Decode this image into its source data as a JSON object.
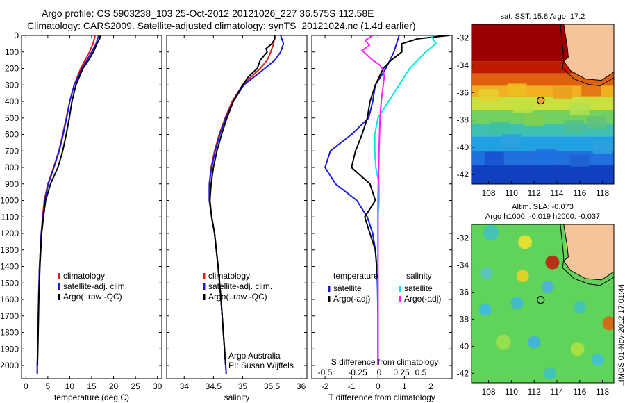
{
  "header": {
    "line1": "Argo profile: CS 5903238_103 25-Oct-2012 20121026_227 36.575S 112.58E",
    "line2": "Climatology: CARS2009. Satellite-adjusted climatology: synTS_20121024.nc (1.4d earlier)"
  },
  "colors": {
    "climatology": "#e01b1b",
    "satellite": "#1a1ae0",
    "argo": "#000000",
    "satellite_salinity": "#00e5ee",
    "argo_salinity": "#ff1dff",
    "land": "#f6c49a"
  },
  "chart_data": [
    {
      "type": "line",
      "panel": "temperature",
      "xlabel": "temperature (deg C)",
      "ylabel": "",
      "xlim": [
        -1,
        31
      ],
      "ylim": [
        2080,
        0
      ],
      "x_ticks": [
        0,
        5,
        10,
        15,
        20,
        25,
        30
      ],
      "y_ticks": [
        0,
        100,
        200,
        300,
        400,
        500,
        600,
        700,
        800,
        900,
        1000,
        1100,
        1200,
        1300,
        1400,
        1500,
        1600,
        1700,
        1800,
        1900,
        2000
      ],
      "legend": [
        "climatology",
        "satellite-adj. clim.",
        "Argo(..raw -QC)"
      ],
      "legend_position": "lower-center",
      "series": [
        {
          "name": "climatology",
          "color": "#e01b1b",
          "depth": [
            0,
            50,
            100,
            200,
            300,
            400,
            500,
            600,
            700,
            800,
            900,
            1000,
            1100,
            1200,
            1400,
            1600,
            1800,
            2000,
            2050
          ],
          "values": [
            15.8,
            15.3,
            14.5,
            12.5,
            11.0,
            10.0,
            9.2,
            8.4,
            7.5,
            6.3,
            5.0,
            4.2,
            3.8,
            3.5,
            3.1,
            2.9,
            2.75,
            2.6,
            2.6
          ]
        },
        {
          "name": "satellite-adj. clim.",
          "color": "#1a1ae0",
          "depth": [
            0,
            50,
            100,
            200,
            300,
            400,
            500,
            600,
            700,
            800,
            900,
            1000,
            1100,
            1200,
            1400,
            1600,
            1800,
            2000,
            2050
          ],
          "values": [
            16.6,
            16.0,
            15.0,
            12.8,
            11.0,
            10.0,
            9.3,
            8.5,
            7.6,
            6.4,
            5.1,
            4.3,
            3.9,
            3.5,
            3.1,
            2.9,
            2.75,
            2.6,
            2.6
          ]
        },
        {
          "name": "Argo(..raw -QC)",
          "color": "#000000",
          "depth": [
            0,
            20,
            50,
            100,
            150,
            200,
            300,
            400,
            500,
            600,
            700,
            800,
            900,
            1000,
            1100,
            1200,
            1400,
            1600,
            1800,
            2000
          ],
          "values": [
            17.0,
            16.8,
            16.2,
            15.4,
            14.3,
            13.0,
            11.4,
            10.5,
            9.9,
            9.2,
            8.4,
            7.3,
            5.6,
            4.5,
            4.0,
            3.6,
            3.2,
            2.95,
            2.8,
            2.65
          ]
        }
      ]
    },
    {
      "type": "line",
      "panel": "salinity",
      "xlabel": "salinity",
      "ylabel": "",
      "xlim": [
        33.7,
        36.1
      ],
      "ylim": [
        2080,
        0
      ],
      "x_ticks": [
        34,
        34.5,
        35,
        35.5,
        36
      ],
      "legend": [
        "climatology",
        "satellite-adj. clim.",
        "Argo(..raw -QC)"
      ],
      "legend_position": "lower-center",
      "annotation": [
        "Argo Australia",
        "PI: Susan Wijffels"
      ],
      "series": [
        {
          "name": "climatology",
          "color": "#e01b1b",
          "depth": [
            0,
            50,
            100,
            150,
            200,
            250,
            300,
            400,
            500,
            600,
            700,
            800,
            900,
            1000,
            1100,
            1200,
            1400,
            1600,
            1800,
            2000,
            2050
          ],
          "values": [
            35.55,
            35.53,
            35.48,
            35.42,
            35.3,
            35.15,
            35.0,
            34.82,
            34.7,
            34.6,
            34.52,
            34.46,
            34.43,
            34.43,
            34.47,
            34.52,
            34.58,
            34.63,
            34.67,
            34.71,
            34.72
          ]
        },
        {
          "name": "satellite-adj. clim.",
          "color": "#1a1ae0",
          "depth": [
            0,
            50,
            100,
            150,
            200,
            250,
            300,
            400,
            500,
            600,
            700,
            800,
            900,
            1000,
            1100,
            1200,
            1400,
            1600,
            1800,
            2000,
            2050
          ],
          "values": [
            35.65,
            35.7,
            35.65,
            35.55,
            35.38,
            35.2,
            35.02,
            34.84,
            34.71,
            34.61,
            34.53,
            34.47,
            34.43,
            34.43,
            34.47,
            34.52,
            34.58,
            34.63,
            34.67,
            34.71,
            34.72
          ]
        },
        {
          "name": "Argo(..raw -QC)",
          "color": "#000000",
          "depth": [
            0,
            20,
            50,
            80,
            100,
            150,
            200,
            250,
            300,
            400,
            500,
            600,
            700,
            800,
            900,
            1000,
            1100,
            1200,
            1400,
            1600,
            1800,
            2000
          ],
          "values": [
            35.55,
            35.55,
            35.5,
            35.4,
            35.42,
            35.3,
            35.25,
            35.1,
            35.0,
            34.84,
            34.73,
            34.64,
            34.56,
            34.5,
            34.46,
            34.44,
            34.47,
            34.52,
            34.58,
            34.63,
            34.67,
            34.71
          ]
        }
      ]
    },
    {
      "type": "line",
      "panel": "difference",
      "xlabel": "T difference from climatology",
      "top_axis_label": "S difference from climatology",
      "xlim": [
        -2.5,
        2.8
      ],
      "ylim": [
        2080,
        0
      ],
      "x_ticks": [
        -2,
        -1,
        0,
        1,
        2
      ],
      "top_ticks": [
        "-0.5",
        "-0.25",
        "0",
        "0.25",
        "0.5"
      ],
      "legend_titles": [
        "temperature",
        "salinity"
      ],
      "legend": [
        "satellite",
        "Argo(-adj)",
        "satellite",
        "Argo(-adj)"
      ],
      "legend_position": "lower-center",
      "series": [
        {
          "name": "satellite",
          "group": "temperature",
          "color": "#1a1ae0",
          "depth": [
            0,
            100,
            200,
            300,
            400,
            500,
            600,
            700,
            800,
            900,
            950,
            1000,
            1100,
            1200,
            1300,
            1400,
            1500,
            1700,
            2000
          ],
          "values": [
            0.8,
            0.6,
            0.3,
            -0.1,
            -0.2,
            -0.35,
            -1.0,
            -1.8,
            -2.0,
            -1.6,
            -1.2,
            -0.8,
            -0.4,
            -0.2,
            -0.1,
            -0.05,
            -0.02,
            0,
            0
          ]
        },
        {
          "name": "Argo(-adj)",
          "group": "temperature",
          "color": "#000000",
          "depth": [
            0,
            20,
            50,
            100,
            150,
            200,
            300,
            400,
            500,
            600,
            700,
            800,
            900,
            1000,
            1100,
            1200,
            1300,
            1400,
            1500,
            1700,
            2000
          ],
          "values": [
            2.7,
            1.5,
            0.9,
            0.9,
            0.5,
            0.2,
            -0.1,
            -0.3,
            -0.4,
            -0.6,
            -0.85,
            -1.0,
            -0.3,
            -0.1,
            -0.5,
            -0.3,
            -0.1,
            -0.05,
            0.0,
            0.0,
            0.0
          ]
        },
        {
          "name": "satellite",
          "group": "salinity",
          "color": "#00e5ee",
          "depth": [
            0,
            50,
            100,
            200,
            300,
            400,
            500,
            600,
            700,
            800,
            900,
            1000,
            1100,
            1200,
            1400,
            1600,
            2000
          ],
          "values": [
            0.5,
            0.55,
            0.45,
            0.3,
            0.2,
            0.1,
            0.0,
            -0.03,
            -0.03,
            -0.02,
            0.01,
            0.01,
            0.0,
            0.0,
            0.0,
            0.0,
            0.0
          ]
        },
        {
          "name": "Argo(-adj)",
          "group": "salinity",
          "color": "#ff1dff",
          "depth": [
            0,
            30,
            60,
            90,
            120,
            150,
            180,
            210,
            250,
            300,
            400,
            500,
            700,
            1000,
            1400,
            2000
          ],
          "values": [
            -0.05,
            -0.12,
            -0.08,
            -0.15,
            -0.1,
            -0.05,
            0.02,
            0.05,
            0.06,
            0.05,
            0.03,
            0.02,
            0.01,
            0.0,
            0.0,
            0.0
          ]
        }
      ]
    },
    {
      "type": "heatmap",
      "panel": "sst-map",
      "title": "sat. SST: 15.8 Argo: 17.2",
      "xlim": [
        106.5,
        119
      ],
      "ylim": [
        -42.7,
        -31
      ],
      "x_ticks": [
        108,
        110,
        112,
        114,
        116,
        118
      ],
      "y_ticks": [
        -32,
        -34,
        -36,
        -38,
        -40,
        -42
      ],
      "marker": {
        "lon": 112.58,
        "lat": -36.575,
        "color": "#f3a12a"
      }
    },
    {
      "type": "heatmap",
      "panel": "sla-map",
      "title": [
        "Altim. SLA: -0.073",
        "Argo h1000: -0.019 h2000: -0.037"
      ],
      "xlim": [
        106.5,
        119
      ],
      "ylim": [
        -42.7,
        -31
      ],
      "x_ticks": [
        108,
        110,
        112,
        114,
        116,
        118
      ],
      "y_ticks": [
        -32,
        -34,
        -36,
        -38,
        -40,
        -42
      ],
      "marker": {
        "lon": 112.58,
        "lat": -36.575,
        "color": "none"
      },
      "side_label": "IMOS 01-Nov-2012 17:01:44"
    }
  ]
}
